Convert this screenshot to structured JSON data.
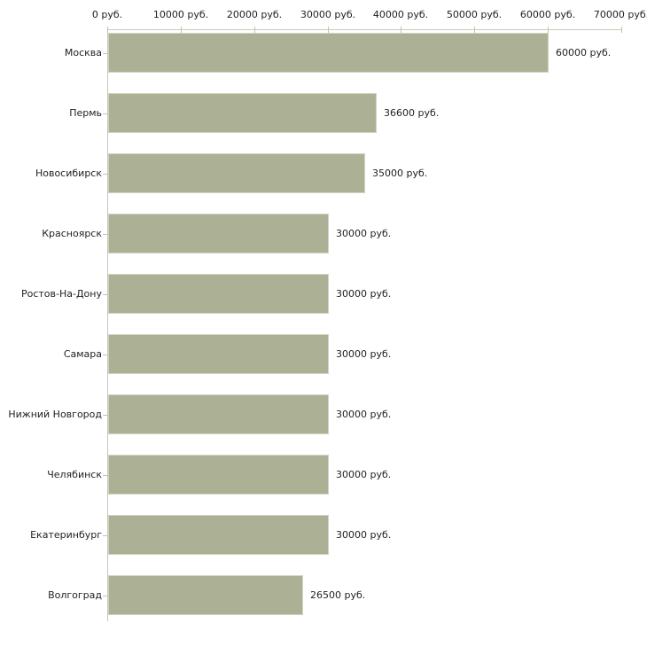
{
  "chart_data": {
    "type": "bar",
    "orientation": "horizontal",
    "title": "",
    "categories": [
      "Москва",
      "Пермь",
      "Новосибирск",
      "Красноярск",
      "Ростов-На-Дону",
      "Самара",
      "Нижний Новгород",
      "Челябинск",
      "Екатеринбург",
      "Волгоград"
    ],
    "values": [
      60000,
      36600,
      35000,
      30000,
      30000,
      30000,
      30000,
      30000,
      30000,
      26500
    ],
    "value_labels": [
      "60000 руб.",
      "36600 руб.",
      "35000 руб.",
      "30000 руб.",
      "30000 руб.",
      "30000 руб.",
      "30000 руб.",
      "30000 руб.",
      "30000 руб.",
      "26500 руб."
    ],
    "xlabel": "",
    "ylabel": "",
    "x_axis": {
      "position": "top",
      "range": [
        0,
        70000
      ],
      "tick_values": [
        0,
        10000,
        20000,
        30000,
        40000,
        50000,
        60000,
        70000
      ],
      "tick_labels": [
        "0 руб.",
        "10000 руб.",
        "20000 руб.",
        "30000 руб.",
        "40000 руб.",
        "50000 руб.",
        "60000 руб.",
        "70000 руб."
      ]
    },
    "grid": false,
    "legend": false,
    "colors": {
      "bar_fill": "#acb196",
      "bar_border": "#d2d4c2",
      "axis_line": "#ccc9bb",
      "tick_mark": "#c6c2a2",
      "text": "#1f1f1f",
      "background": "#ffffff"
    }
  }
}
